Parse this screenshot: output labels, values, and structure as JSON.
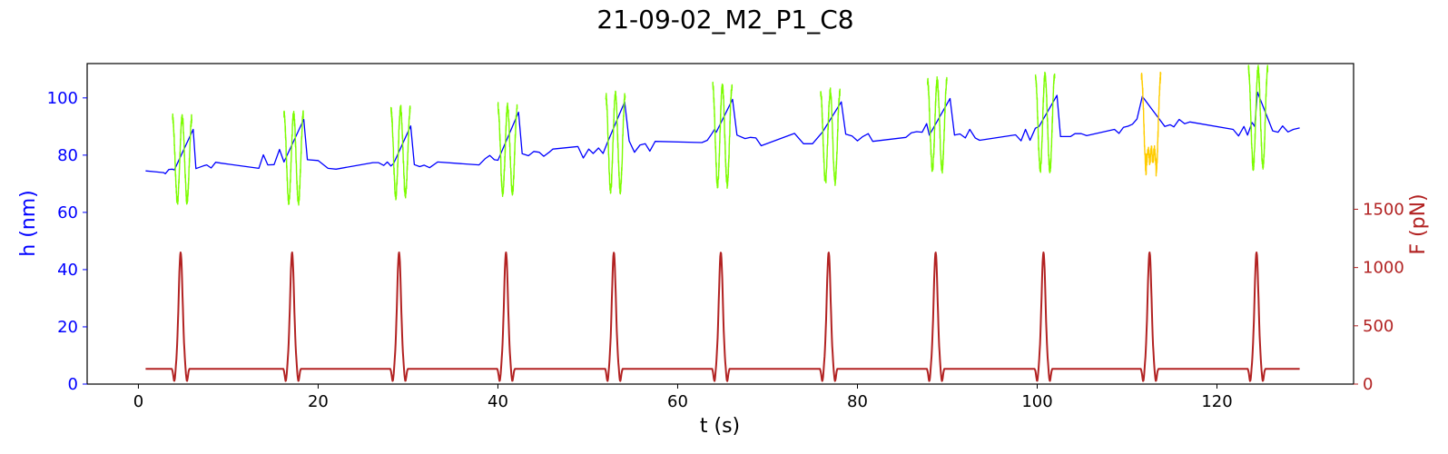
{
  "chart_data": {
    "type": "line",
    "title": "21-09-02_M2_P1_C8",
    "xlabel": "t (s)",
    "ylabel_left": "h (nm)",
    "ylabel_right": "F (pN)",
    "xlim": [
      -5.7,
      135.2
    ],
    "ylim_left": [
      0,
      112
    ],
    "ylim_right": [
      0,
      2750
    ],
    "x_ticks": [
      0,
      20,
      40,
      60,
      80,
      100,
      120
    ],
    "y_left_ticks": [
      0,
      20,
      40,
      60,
      80,
      100
    ],
    "y_right_ticks": [
      0,
      500,
      1000,
      1500
    ],
    "colors": {
      "height": "#0000ff",
      "compression_normal": "#7cfc00",
      "compression_highlight": "#ffcc00",
      "force": "#b22222",
      "left_axis": "#0000ff",
      "right_axis": "#b22222"
    },
    "pulse_times": [
      4.7,
      17.1,
      29.0,
      40.9,
      52.9,
      64.8,
      76.8,
      88.7,
      100.7,
      112.5,
      124.4
    ],
    "force_baseline": 130,
    "force_peak": 1130,
    "compression_cycles": [
      {
        "t": 4.7,
        "h_pre": 75,
        "h_top": 93,
        "h_min": 64,
        "highlight": false
      },
      {
        "t": 17.1,
        "h_pre": 77,
        "h_top": 94,
        "h_min": 64,
        "highlight": false
      },
      {
        "t": 29.0,
        "h_pre": 77,
        "h_top": 96,
        "h_min": 66,
        "highlight": false
      },
      {
        "t": 40.9,
        "h_pre": 78,
        "h_top": 97,
        "h_min": 67,
        "highlight": false
      },
      {
        "t": 52.9,
        "h_pre": 81,
        "h_top": 101,
        "h_min": 68,
        "highlight": false
      },
      {
        "t": 64.8,
        "h_pre": 85,
        "h_top": 104,
        "h_min": 70,
        "highlight": false
      },
      {
        "t": 76.8,
        "h_pre": 86,
        "h_top": 102,
        "h_min": 71,
        "highlight": false
      },
      {
        "t": 88.7,
        "h_pre": 87,
        "h_top": 106,
        "h_min": 75,
        "highlight": false
      },
      {
        "t": 100.7,
        "h_pre": 87,
        "h_top": 108,
        "h_min": 75,
        "highlight": false
      },
      {
        "t": 112.5,
        "h_pre": 89,
        "h_top": 108,
        "h_min": 74,
        "highlight": true
      },
      {
        "t": 124.4,
        "h_pre": 90,
        "h_top": 110,
        "h_min": 76,
        "highlight": false
      }
    ],
    "height_series": {
      "name": "h",
      "points": [
        [
          0.8,
          74.5
        ],
        [
          1.8,
          74.2
        ],
        [
          2.8,
          73.9
        ],
        [
          3.0,
          73.5
        ],
        [
          3.4,
          75.0
        ],
        [
          3.8,
          75.1
        ],
        [
          4.0,
          74.8
        ],
        [
          6.1,
          89.0
        ],
        [
          6.4,
          75.3
        ],
        [
          7.2,
          76.2
        ],
        [
          7.6,
          76.6
        ],
        [
          8.1,
          75.5
        ],
        [
          8.6,
          77.5
        ],
        [
          9.2,
          77.2
        ],
        [
          13.4,
          75.4
        ],
        [
          13.9,
          80.1
        ],
        [
          14.4,
          76.6
        ],
        [
          15.1,
          76.7
        ],
        [
          15.7,
          82.0
        ],
        [
          16.2,
          77.6
        ],
        [
          18.4,
          92.5
        ],
        [
          18.8,
          78.4
        ],
        [
          20.0,
          78.1
        ],
        [
          21.1,
          75.4
        ],
        [
          22.0,
          75.1
        ],
        [
          26.1,
          77.4
        ],
        [
          26.7,
          77.4
        ],
        [
          27.3,
          76.4
        ],
        [
          27.7,
          77.6
        ],
        [
          28.1,
          76.2
        ],
        [
          28.4,
          77.1
        ],
        [
          30.3,
          90.2
        ],
        [
          30.7,
          76.7
        ],
        [
          31.3,
          76.0
        ],
        [
          31.8,
          76.5
        ],
        [
          32.4,
          75.6
        ],
        [
          33.3,
          77.6
        ],
        [
          37.9,
          76.6
        ],
        [
          38.6,
          78.8
        ],
        [
          39.1,
          79.9
        ],
        [
          39.6,
          78.4
        ],
        [
          40.0,
          78.2
        ],
        [
          42.3,
          95.0
        ],
        [
          42.7,
          80.5
        ],
        [
          43.4,
          79.8
        ],
        [
          44.0,
          81.3
        ],
        [
          44.6,
          81.0
        ],
        [
          45.1,
          79.6
        ],
        [
          45.7,
          81.0
        ],
        [
          46.1,
          82.1
        ],
        [
          48.9,
          83.0
        ],
        [
          49.5,
          79.0
        ],
        [
          50.1,
          82.1
        ],
        [
          50.6,
          80.6
        ],
        [
          51.2,
          82.5
        ],
        [
          51.7,
          80.6
        ],
        [
          52.1,
          83.8
        ],
        [
          54.1,
          98.6
        ],
        [
          54.6,
          85.0
        ],
        [
          55.2,
          81.0
        ],
        [
          55.8,
          83.5
        ],
        [
          56.4,
          84.0
        ],
        [
          56.9,
          81.4
        ],
        [
          57.5,
          84.8
        ],
        [
          62.7,
          84.4
        ],
        [
          63.3,
          85.2
        ],
        [
          63.7,
          87.0
        ],
        [
          64.1,
          89.0
        ],
        [
          64.3,
          88.0
        ],
        [
          66.1,
          99.5
        ],
        [
          66.6,
          87.0
        ],
        [
          67.5,
          85.8
        ],
        [
          68.1,
          86.2
        ],
        [
          68.7,
          86.0
        ],
        [
          69.3,
          83.3
        ],
        [
          73.0,
          87.6
        ],
        [
          74.0,
          84.0
        ],
        [
          75.0,
          84.0
        ],
        [
          75.8,
          86.9
        ],
        [
          76.1,
          88.0
        ],
        [
          78.2,
          98.6
        ],
        [
          78.7,
          87.3
        ],
        [
          79.4,
          86.7
        ],
        [
          80.0,
          85.0
        ],
        [
          80.6,
          86.5
        ],
        [
          81.2,
          87.5
        ],
        [
          81.7,
          84.8
        ],
        [
          85.4,
          86.2
        ],
        [
          86.0,
          87.8
        ],
        [
          86.6,
          88.2
        ],
        [
          87.2,
          88.0
        ],
        [
          87.7,
          91.0
        ],
        [
          88.0,
          87.0
        ],
        [
          90.3,
          99.8
        ],
        [
          90.8,
          87.0
        ],
        [
          91.4,
          87.4
        ],
        [
          92.0,
          86.0
        ],
        [
          92.5,
          89.0
        ],
        [
          93.1,
          86.0
        ],
        [
          93.6,
          85.2
        ],
        [
          97.6,
          87.1
        ],
        [
          98.2,
          85.0
        ],
        [
          98.7,
          89.0
        ],
        [
          99.2,
          85.2
        ],
        [
          99.8,
          89.4
        ],
        [
          100.2,
          90.0
        ],
        [
          102.2,
          100.9
        ],
        [
          102.6,
          86.5
        ],
        [
          103.7,
          86.5
        ],
        [
          104.2,
          87.5
        ],
        [
          104.9,
          87.5
        ],
        [
          105.5,
          86.8
        ],
        [
          108.6,
          89.0
        ],
        [
          109.1,
          87.6
        ],
        [
          109.6,
          89.7
        ],
        [
          110.1,
          90.1
        ],
        [
          110.6,
          90.8
        ],
        [
          111.1,
          92.6
        ],
        [
          111.7,
          100.5
        ],
        [
          114.2,
          90.0
        ],
        [
          114.8,
          90.6
        ],
        [
          115.2,
          89.9
        ],
        [
          115.8,
          92.5
        ],
        [
          116.4,
          91.0
        ],
        [
          117.0,
          91.6
        ],
        [
          121.8,
          89.0
        ],
        [
          122.4,
          86.7
        ],
        [
          123.0,
          90.0
        ],
        [
          123.4,
          87.0
        ],
        [
          123.9,
          91.4
        ],
        [
          124.2,
          90.0
        ],
        [
          124.5,
          102.0
        ],
        [
          126.2,
          88.5
        ],
        [
          126.8,
          88.0
        ],
        [
          127.3,
          90.2
        ],
        [
          127.9,
          88.1
        ],
        [
          128.5,
          89.0
        ],
        [
          129.2,
          89.5
        ]
      ]
    }
  }
}
